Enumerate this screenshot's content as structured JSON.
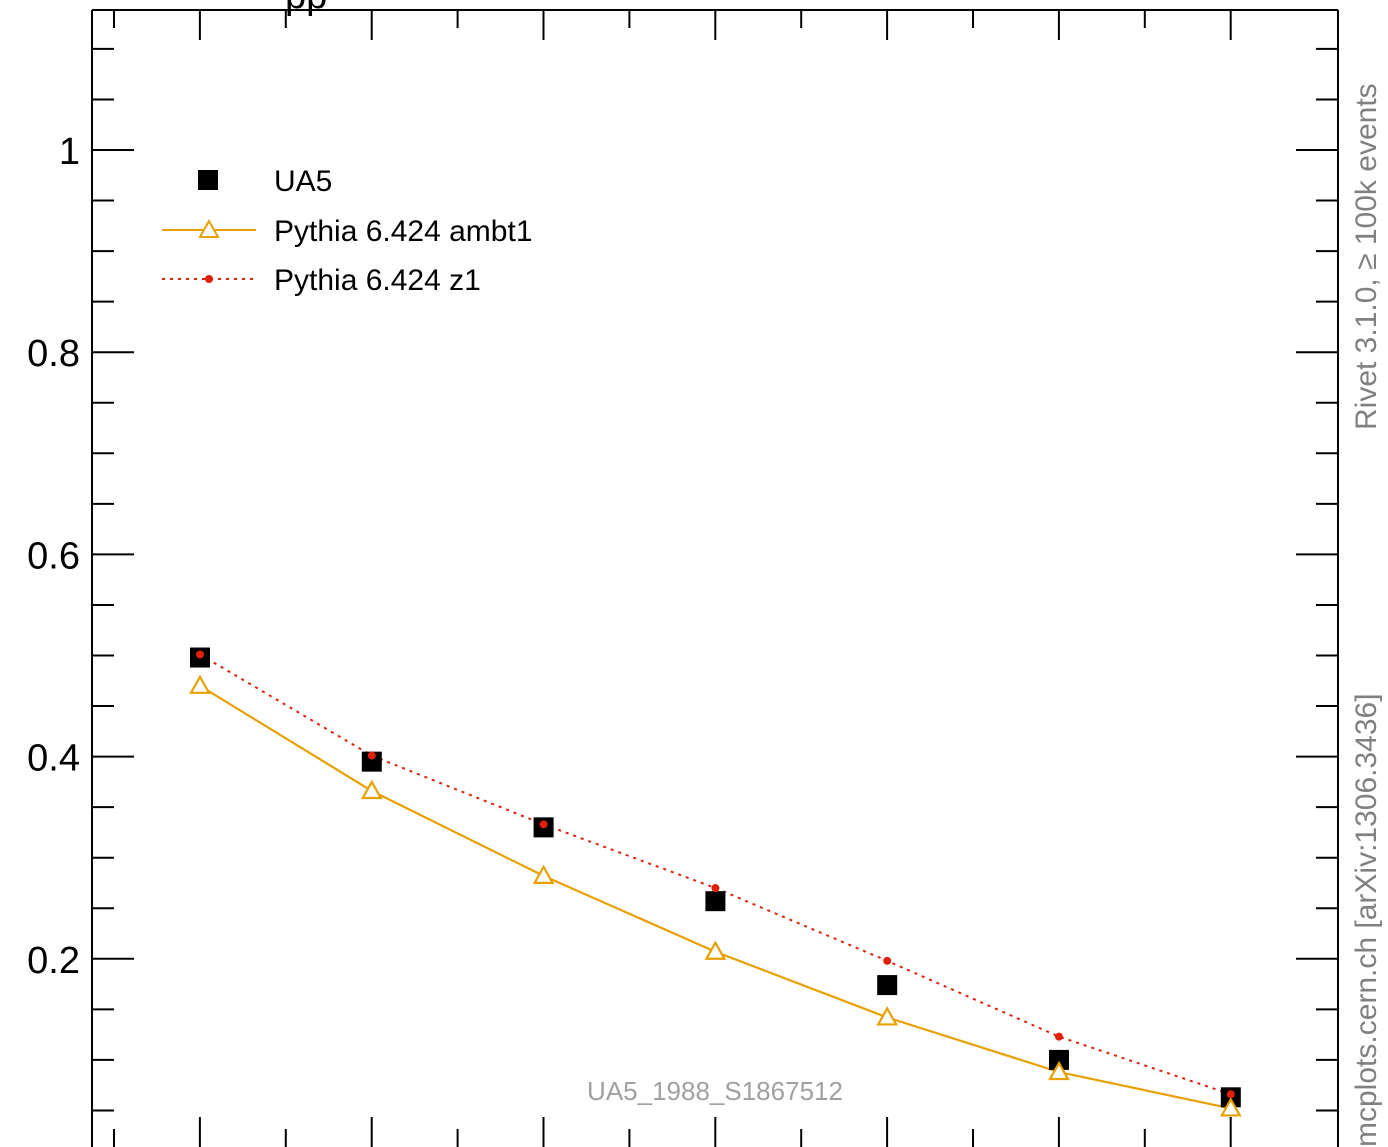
{
  "chart_data": {
    "type": "scatter",
    "title": "pp",
    "x": [
      0,
      1,
      2,
      3,
      4,
      5,
      6
    ],
    "ylim": [
      0.0,
      1.13
    ],
    "y_ticks": [
      0.2,
      0.4,
      0.6,
      0.8,
      1.0
    ],
    "y_tick_labels": [
      "0.2",
      "0.4",
      "0.6",
      "0.8",
      "1"
    ],
    "legend_position": "top-left",
    "grid": false,
    "series": [
      {
        "name": "UA5",
        "style": "square-markers",
        "color": "#000000",
        "values": [
          0.498,
          0.395,
          0.33,
          0.257,
          0.174,
          0.1,
          0.063
        ]
      },
      {
        "name": "Pythia 6.424 ambt1",
        "style": "solid-line-open-triangles",
        "color": "#e8a000",
        "values": [
          0.47,
          0.366,
          0.282,
          0.207,
          0.142,
          0.088,
          0.052
        ]
      },
      {
        "name": "Pythia 6.424 z1",
        "style": "dotted-line-dots",
        "color": "#e0200a",
        "values": [
          0.501,
          0.401,
          0.333,
          0.27,
          0.198,
          0.123,
          0.066
        ]
      }
    ]
  },
  "side_labels": {
    "rivet": "Rivet 3.1.0, ≥ 100k events",
    "mcplots": "mcplots.cern.ch [arXiv:1306.3436]"
  },
  "watermark": "UA5_1988_S1867512"
}
